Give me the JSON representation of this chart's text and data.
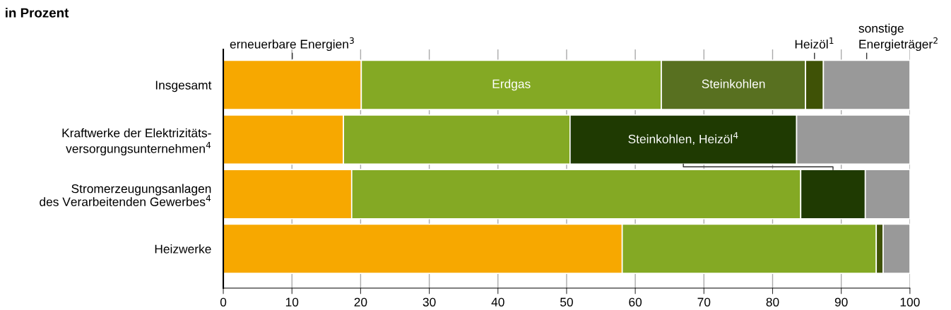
{
  "chart_data": {
    "type": "bar",
    "orientation": "horizontal",
    "stacked": true,
    "title": "in Prozent",
    "categories": [
      "Insgesamt",
      "Kraftwerke der Elektrizitäts-\nversorgungsunternehmen$^{4}$",
      "Stromerzeugungsanlagen\ndes Verarbeitenden Gewerbes$^{4}$",
      "Heizwerke"
    ],
    "series": [
      {
        "name": "erneuerbare Energien$^{3}$",
        "color": "#f7a800",
        "values": [
          20.1,
          17.5,
          18.7,
          58.1
        ]
      },
      {
        "name": "Erdgas",
        "color": "#84a924",
        "values": [
          43.7,
          33.0,
          65.4,
          37.0
        ]
      },
      {
        "name": "Steinkohlen",
        "color": "#587020",
        "values": [
          21.0,
          null,
          null,
          null
        ]
      },
      {
        "name": "Heizöl$^{1}$",
        "color": "#3f5206",
        "values": [
          2.6,
          null,
          null,
          1.0
        ]
      },
      {
        "name": "Steinkohlen, Heizöl$^{4}$",
        "color": "#1f3a02",
        "values": [
          null,
          33.0,
          9.4,
          null
        ]
      },
      {
        "name": "sonstige\nEnergieträger$^{2}$",
        "color": "#999999",
        "values": [
          12.6,
          16.5,
          6.5,
          3.9
        ]
      }
    ],
    "xlim": [
      0,
      100
    ],
    "xticks": [
      0,
      10,
      20,
      30,
      40,
      50,
      60,
      70,
      80,
      90,
      100
    ],
    "grid": "x",
    "legend": false
  }
}
